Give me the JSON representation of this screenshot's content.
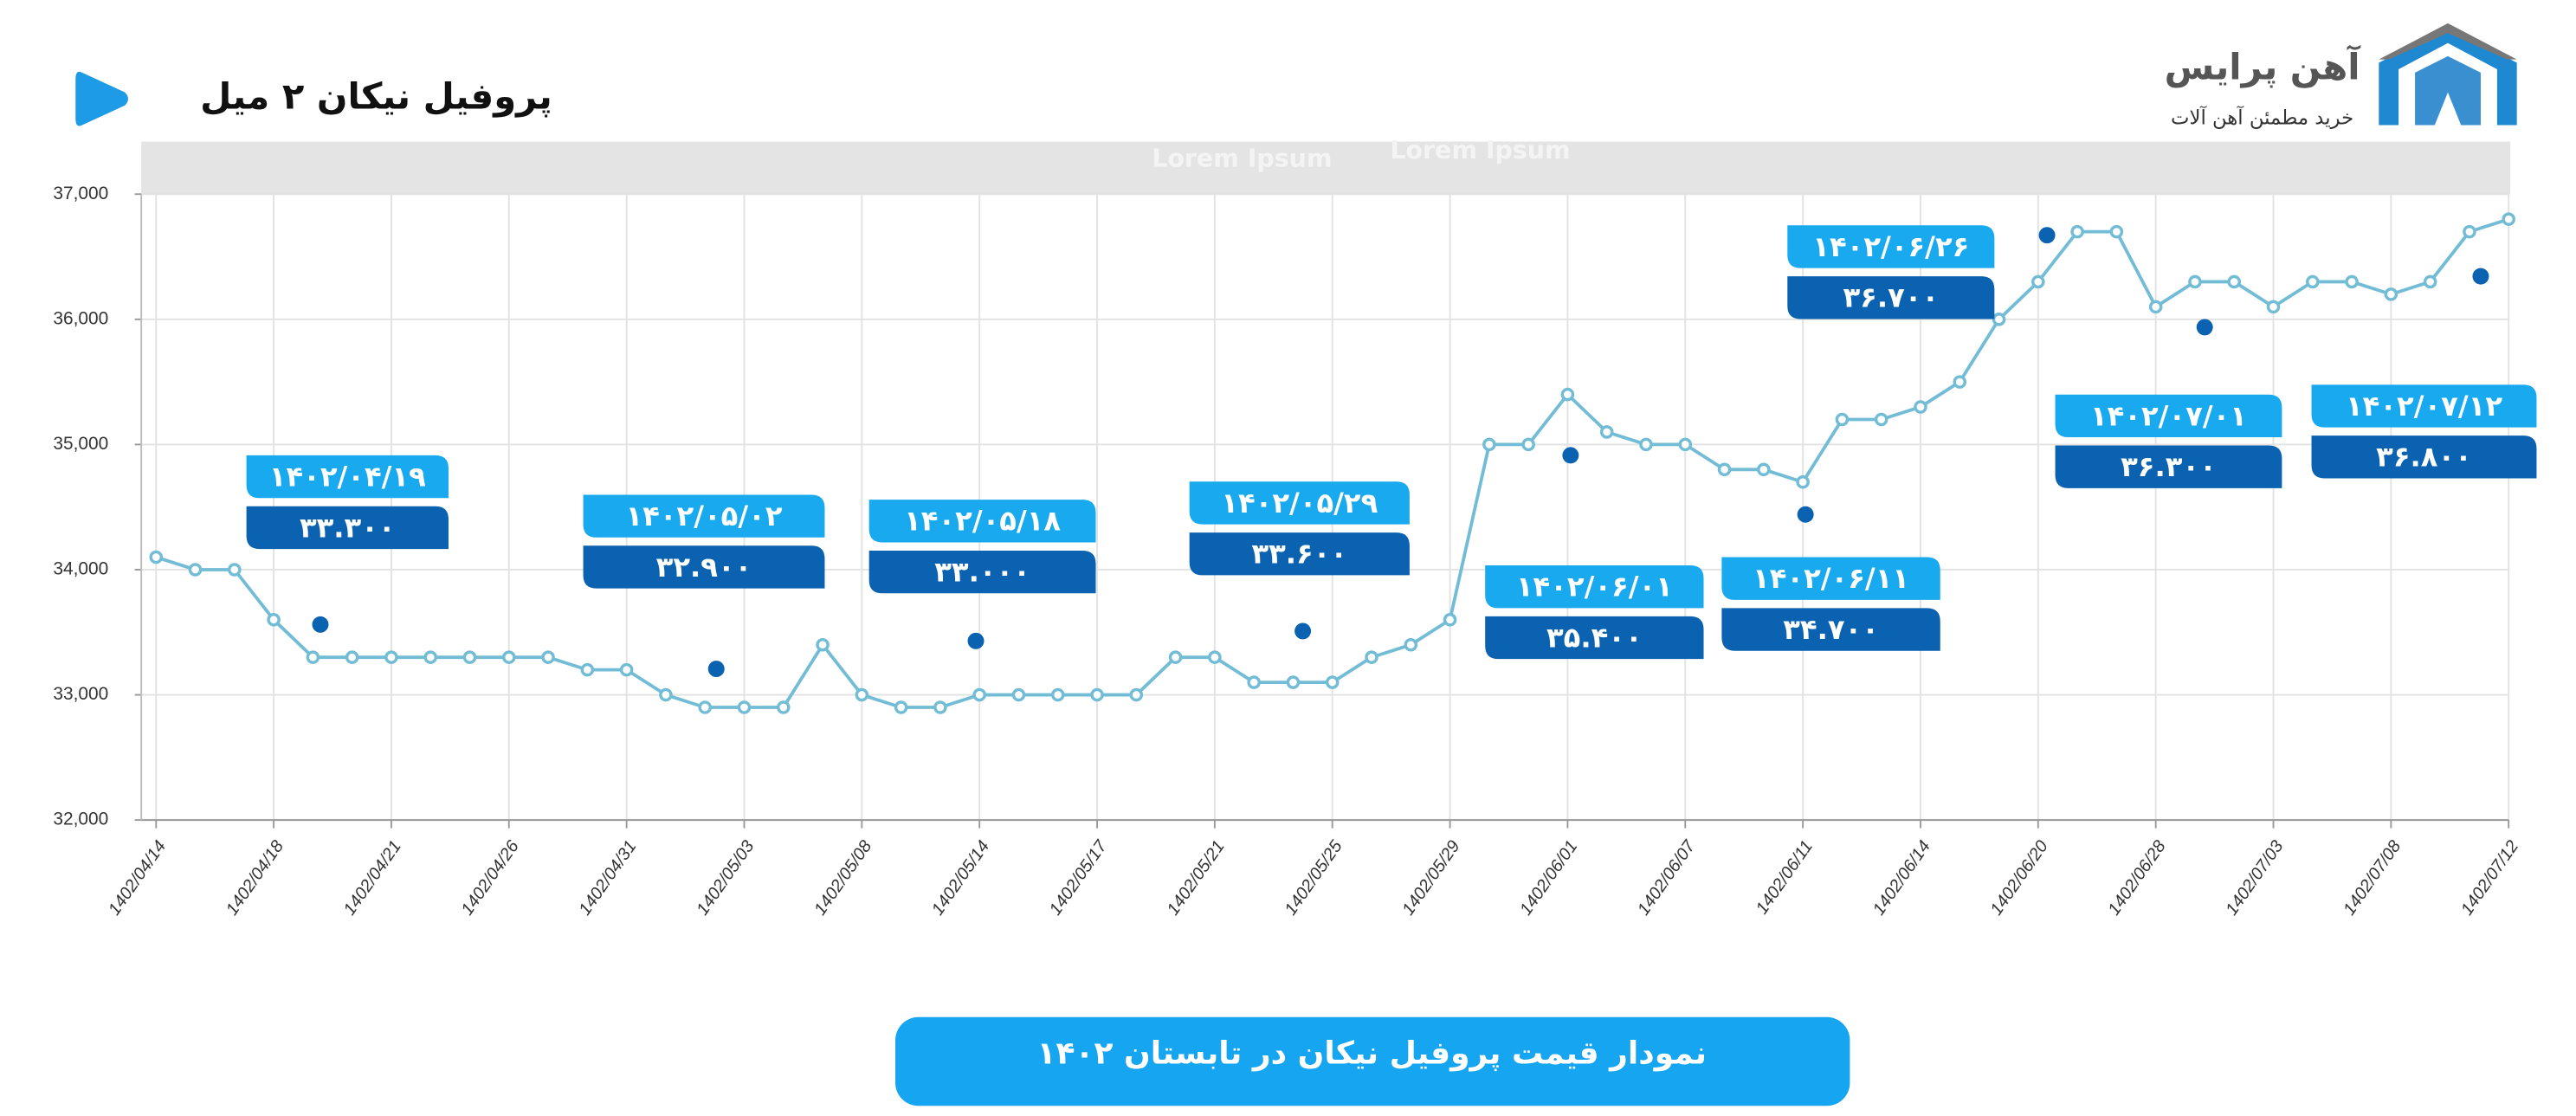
{
  "chart_data": {
    "type": "line",
    "title": "پروفیل نیکان ۲ میل",
    "logo_name": "آهن پرایس",
    "logo_tagline": "خرید مطمئن آهن آلات",
    "banner": "نمودار قیمت پروفیل نیکان در تابستان ۱۴۰۲",
    "header_texts": [
      "Lorem Ipsum",
      "Lorem Ipsum"
    ],
    "categories": [
      "1402/04/14",
      null,
      null,
      "1402/04/18",
      null,
      null,
      "1402/04/21",
      null,
      null,
      "1402/04/26",
      null,
      null,
      "1402/04/31",
      null,
      null,
      "1402/05/03",
      null,
      null,
      "1402/05/08",
      null,
      null,
      "1402/05/14",
      null,
      null,
      "1402/05/17",
      null,
      null,
      "1402/05/21",
      null,
      null,
      "1402/05/25",
      null,
      null,
      "1402/05/29",
      null,
      null,
      "1402/06/01",
      null,
      null,
      "1402/06/07",
      null,
      null,
      "1402/06/11",
      null,
      null,
      "1402/06/14",
      null,
      null,
      "1402/06/20",
      null,
      null,
      "1402/06/28",
      null,
      null,
      "1402/07/03",
      null,
      null,
      "1402/07/08",
      null,
      null,
      "1402/07/12"
    ],
    "values": [
      34100,
      34000,
      34000,
      33600,
      33300,
      33300,
      33300,
      33300,
      33300,
      33300,
      33300,
      33200,
      33200,
      33000,
      32900,
      32900,
      32900,
      33400,
      33000,
      32900,
      32900,
      33000,
      33000,
      33000,
      33000,
      33000,
      33300,
      33300,
      33100,
      33100,
      33100,
      33300,
      33400,
      33600,
      35000,
      35000,
      35400,
      35100,
      35000,
      35000,
      34800,
      34800,
      34700,
      35200,
      35200,
      35300,
      35500,
      36000,
      36300,
      36700,
      36700,
      36100,
      36300,
      36300,
      36100,
      36300,
      36300,
      36200,
      36300,
      36700,
      36800
    ],
    "color": "#72bcd6",
    "ylim": [
      32000,
      37000
    ],
    "yticks": [
      {
        "value": 32000,
        "label": "32,000"
      },
      {
        "value": 33000,
        "label": "33,000"
      },
      {
        "value": 34000,
        "label": "34,000"
      },
      {
        "value": 35000,
        "label": "35,000"
      },
      {
        "value": 36000,
        "label": "36,000"
      },
      {
        "value": 37000,
        "label": "37,000"
      }
    ],
    "grid": true,
    "annotations": [
      {
        "date": "۱۴۰۲/۰۴/۱۹",
        "value": "۳۳.۳۰۰"
      },
      {
        "date": "۱۴۰۲/۰۵/۰۲",
        "value": "۳۲.۹۰۰"
      },
      {
        "date": "۱۴۰۲/۰۵/۱۸",
        "value": "۳۳.۰۰۰"
      },
      {
        "date": "۱۴۰۲/۰۵/۲۹",
        "value": "۳۳.۶۰۰"
      },
      {
        "date": "۱۴۰۲/۰۶/۰۱",
        "value": "۳۵.۴۰۰"
      },
      {
        "date": "۱۴۰۲/۰۶/۱۱",
        "value": "۳۴.۷۰۰"
      },
      {
        "date": "۱۴۰۲/۰۶/۲۶",
        "value": "۳۶.۷۰۰"
      },
      {
        "date": "۱۴۰۲/۰۷/۰۱",
        "value": "۳۶.۳۰۰"
      },
      {
        "date": "۱۴۰۲/۰۷/۱۲",
        "value": "۳۶.۸۰۰"
      }
    ]
  }
}
